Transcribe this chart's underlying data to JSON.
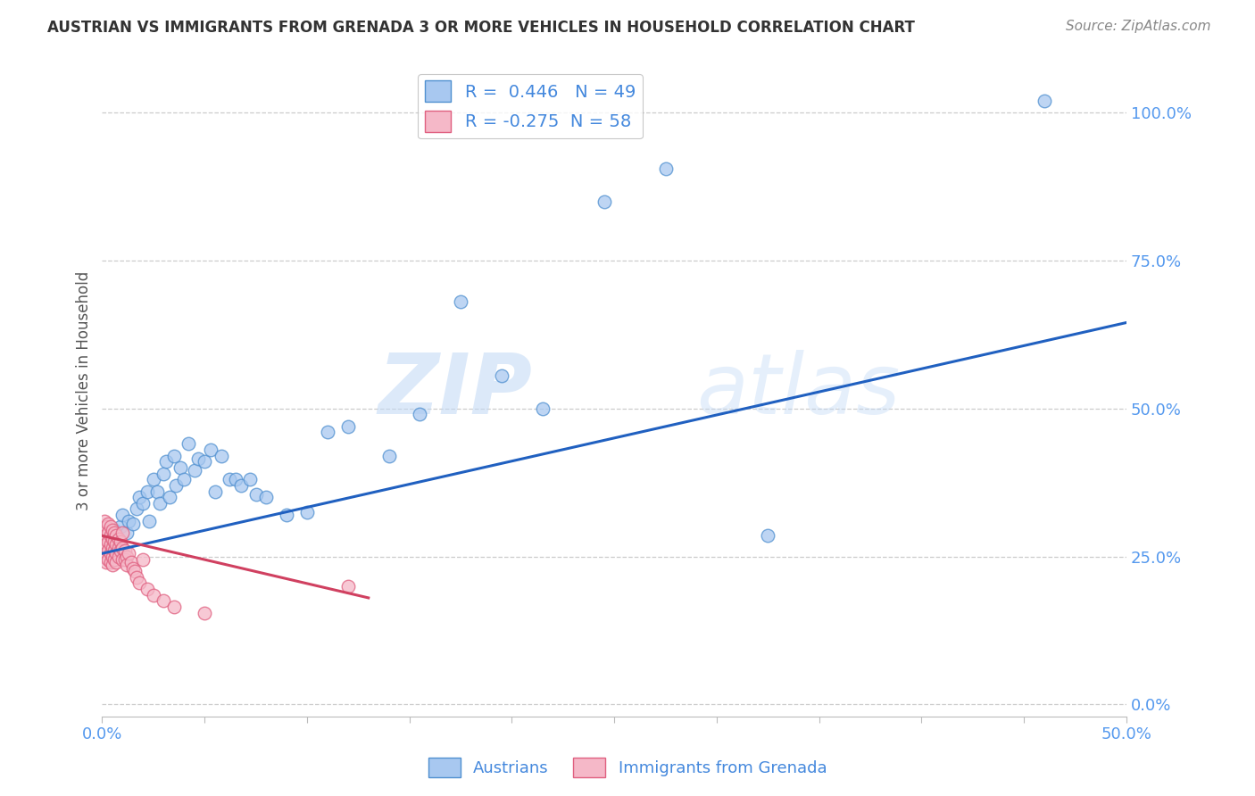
{
  "title": "AUSTRIAN VS IMMIGRANTS FROM GRENADA 3 OR MORE VEHICLES IN HOUSEHOLD CORRELATION CHART",
  "source": "Source: ZipAtlas.com",
  "ylabel": "3 or more Vehicles in Household",
  "xlim": [
    0.0,
    0.5
  ],
  "ylim": [
    -0.02,
    1.08
  ],
  "blue_R": 0.446,
  "blue_N": 49,
  "pink_R": -0.275,
  "pink_N": 58,
  "blue_color": "#a8c8f0",
  "pink_color": "#f5b8c8",
  "blue_edge_color": "#5090d0",
  "pink_edge_color": "#e06080",
  "blue_line_color": "#2060c0",
  "pink_line_color": "#d04060",
  "blue_trend_x": [
    0.0,
    0.5
  ],
  "blue_trend_y": [
    0.255,
    0.645
  ],
  "pink_trend_x": [
    0.0,
    0.13
  ],
  "pink_trend_y": [
    0.285,
    0.18
  ],
  "blue_scatter_x": [
    0.004,
    0.006,
    0.007,
    0.009,
    0.01,
    0.012,
    0.013,
    0.015,
    0.017,
    0.018,
    0.02,
    0.022,
    0.023,
    0.025,
    0.027,
    0.028,
    0.03,
    0.031,
    0.033,
    0.035,
    0.036,
    0.038,
    0.04,
    0.042,
    0.045,
    0.047,
    0.05,
    0.053,
    0.055,
    0.058,
    0.062,
    0.065,
    0.068,
    0.072,
    0.075,
    0.08,
    0.09,
    0.1,
    0.11,
    0.12,
    0.14,
    0.155,
    0.175,
    0.195,
    0.215,
    0.245,
    0.275,
    0.325,
    0.46
  ],
  "blue_scatter_y": [
    0.285,
    0.295,
    0.27,
    0.3,
    0.32,
    0.29,
    0.31,
    0.305,
    0.33,
    0.35,
    0.34,
    0.36,
    0.31,
    0.38,
    0.36,
    0.34,
    0.39,
    0.41,
    0.35,
    0.42,
    0.37,
    0.4,
    0.38,
    0.44,
    0.395,
    0.415,
    0.41,
    0.43,
    0.36,
    0.42,
    0.38,
    0.38,
    0.37,
    0.38,
    0.355,
    0.35,
    0.32,
    0.325,
    0.46,
    0.47,
    0.42,
    0.49,
    0.68,
    0.555,
    0.5,
    0.85,
    0.905,
    0.285,
    1.02
  ],
  "pink_scatter_x": [
    0.001,
    0.001,
    0.001,
    0.001,
    0.001,
    0.002,
    0.002,
    0.002,
    0.002,
    0.002,
    0.003,
    0.003,
    0.003,
    0.003,
    0.003,
    0.004,
    0.004,
    0.004,
    0.004,
    0.004,
    0.005,
    0.005,
    0.005,
    0.005,
    0.005,
    0.006,
    0.006,
    0.006,
    0.006,
    0.007,
    0.007,
    0.007,
    0.007,
    0.008,
    0.008,
    0.008,
    0.009,
    0.009,
    0.01,
    0.01,
    0.01,
    0.011,
    0.011,
    0.012,
    0.012,
    0.013,
    0.014,
    0.015,
    0.016,
    0.017,
    0.018,
    0.02,
    0.022,
    0.025,
    0.03,
    0.035,
    0.05,
    0.12
  ],
  "pink_scatter_y": [
    0.295,
    0.31,
    0.28,
    0.265,
    0.25,
    0.3,
    0.285,
    0.27,
    0.255,
    0.24,
    0.305,
    0.29,
    0.275,
    0.26,
    0.245,
    0.3,
    0.285,
    0.27,
    0.255,
    0.24,
    0.295,
    0.28,
    0.265,
    0.25,
    0.235,
    0.29,
    0.275,
    0.26,
    0.245,
    0.285,
    0.27,
    0.255,
    0.24,
    0.28,
    0.265,
    0.25,
    0.275,
    0.26,
    0.29,
    0.265,
    0.245,
    0.26,
    0.245,
    0.25,
    0.235,
    0.255,
    0.24,
    0.23,
    0.225,
    0.215,
    0.205,
    0.245,
    0.195,
    0.185,
    0.175,
    0.165,
    0.155,
    0.2
  ],
  "watermark_zip": "ZIP",
  "watermark_atlas": "atlas",
  "background_color": "#ffffff",
  "grid_color": "#cccccc",
  "yticks_right": [
    0.0,
    0.25,
    0.5,
    0.75,
    1.0
  ],
  "ytick_labels_right": [
    "0.0%",
    "25.0%",
    "50.0%",
    "75.0%",
    "100.0%"
  ],
  "xticks": [
    0.0,
    0.05,
    0.1,
    0.15,
    0.2,
    0.25,
    0.3,
    0.35,
    0.4,
    0.45,
    0.5
  ],
  "title_fontsize": 12,
  "source_fontsize": 11,
  "tick_fontsize": 13,
  "ylabel_fontsize": 12
}
